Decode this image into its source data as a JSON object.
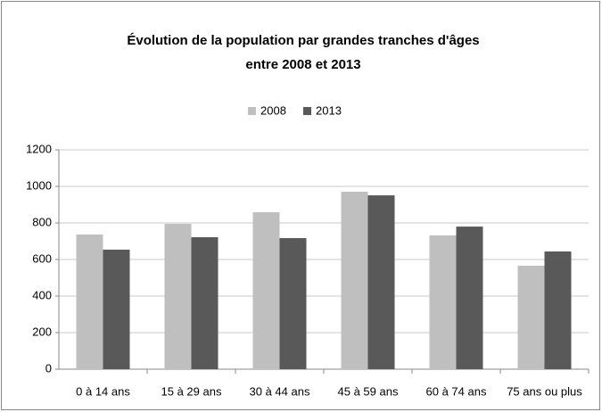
{
  "chart_data": {
    "type": "bar",
    "title": [
      "Évolution de la population par grandes tranches d'âges",
      "entre 2008 et  2013"
    ],
    "categories": [
      "0 à 14 ans",
      "15 à 29 ans",
      "30 à 44 ans",
      "45 à 59 ans",
      "60 à 74 ans",
      "75 ans ou plus"
    ],
    "series": [
      {
        "name": "2008",
        "color": "#bfbfbf",
        "values": [
          737,
          795,
          859,
          971,
          732,
          566
        ]
      },
      {
        "name": "2013",
        "color": "#595959",
        "values": [
          654,
          722,
          717,
          951,
          780,
          644
        ]
      }
    ],
    "ylim": [
      0,
      1200
    ],
    "yticks": [
      0,
      200,
      400,
      600,
      800,
      1000,
      1200
    ],
    "grid": true,
    "legend": "top"
  }
}
